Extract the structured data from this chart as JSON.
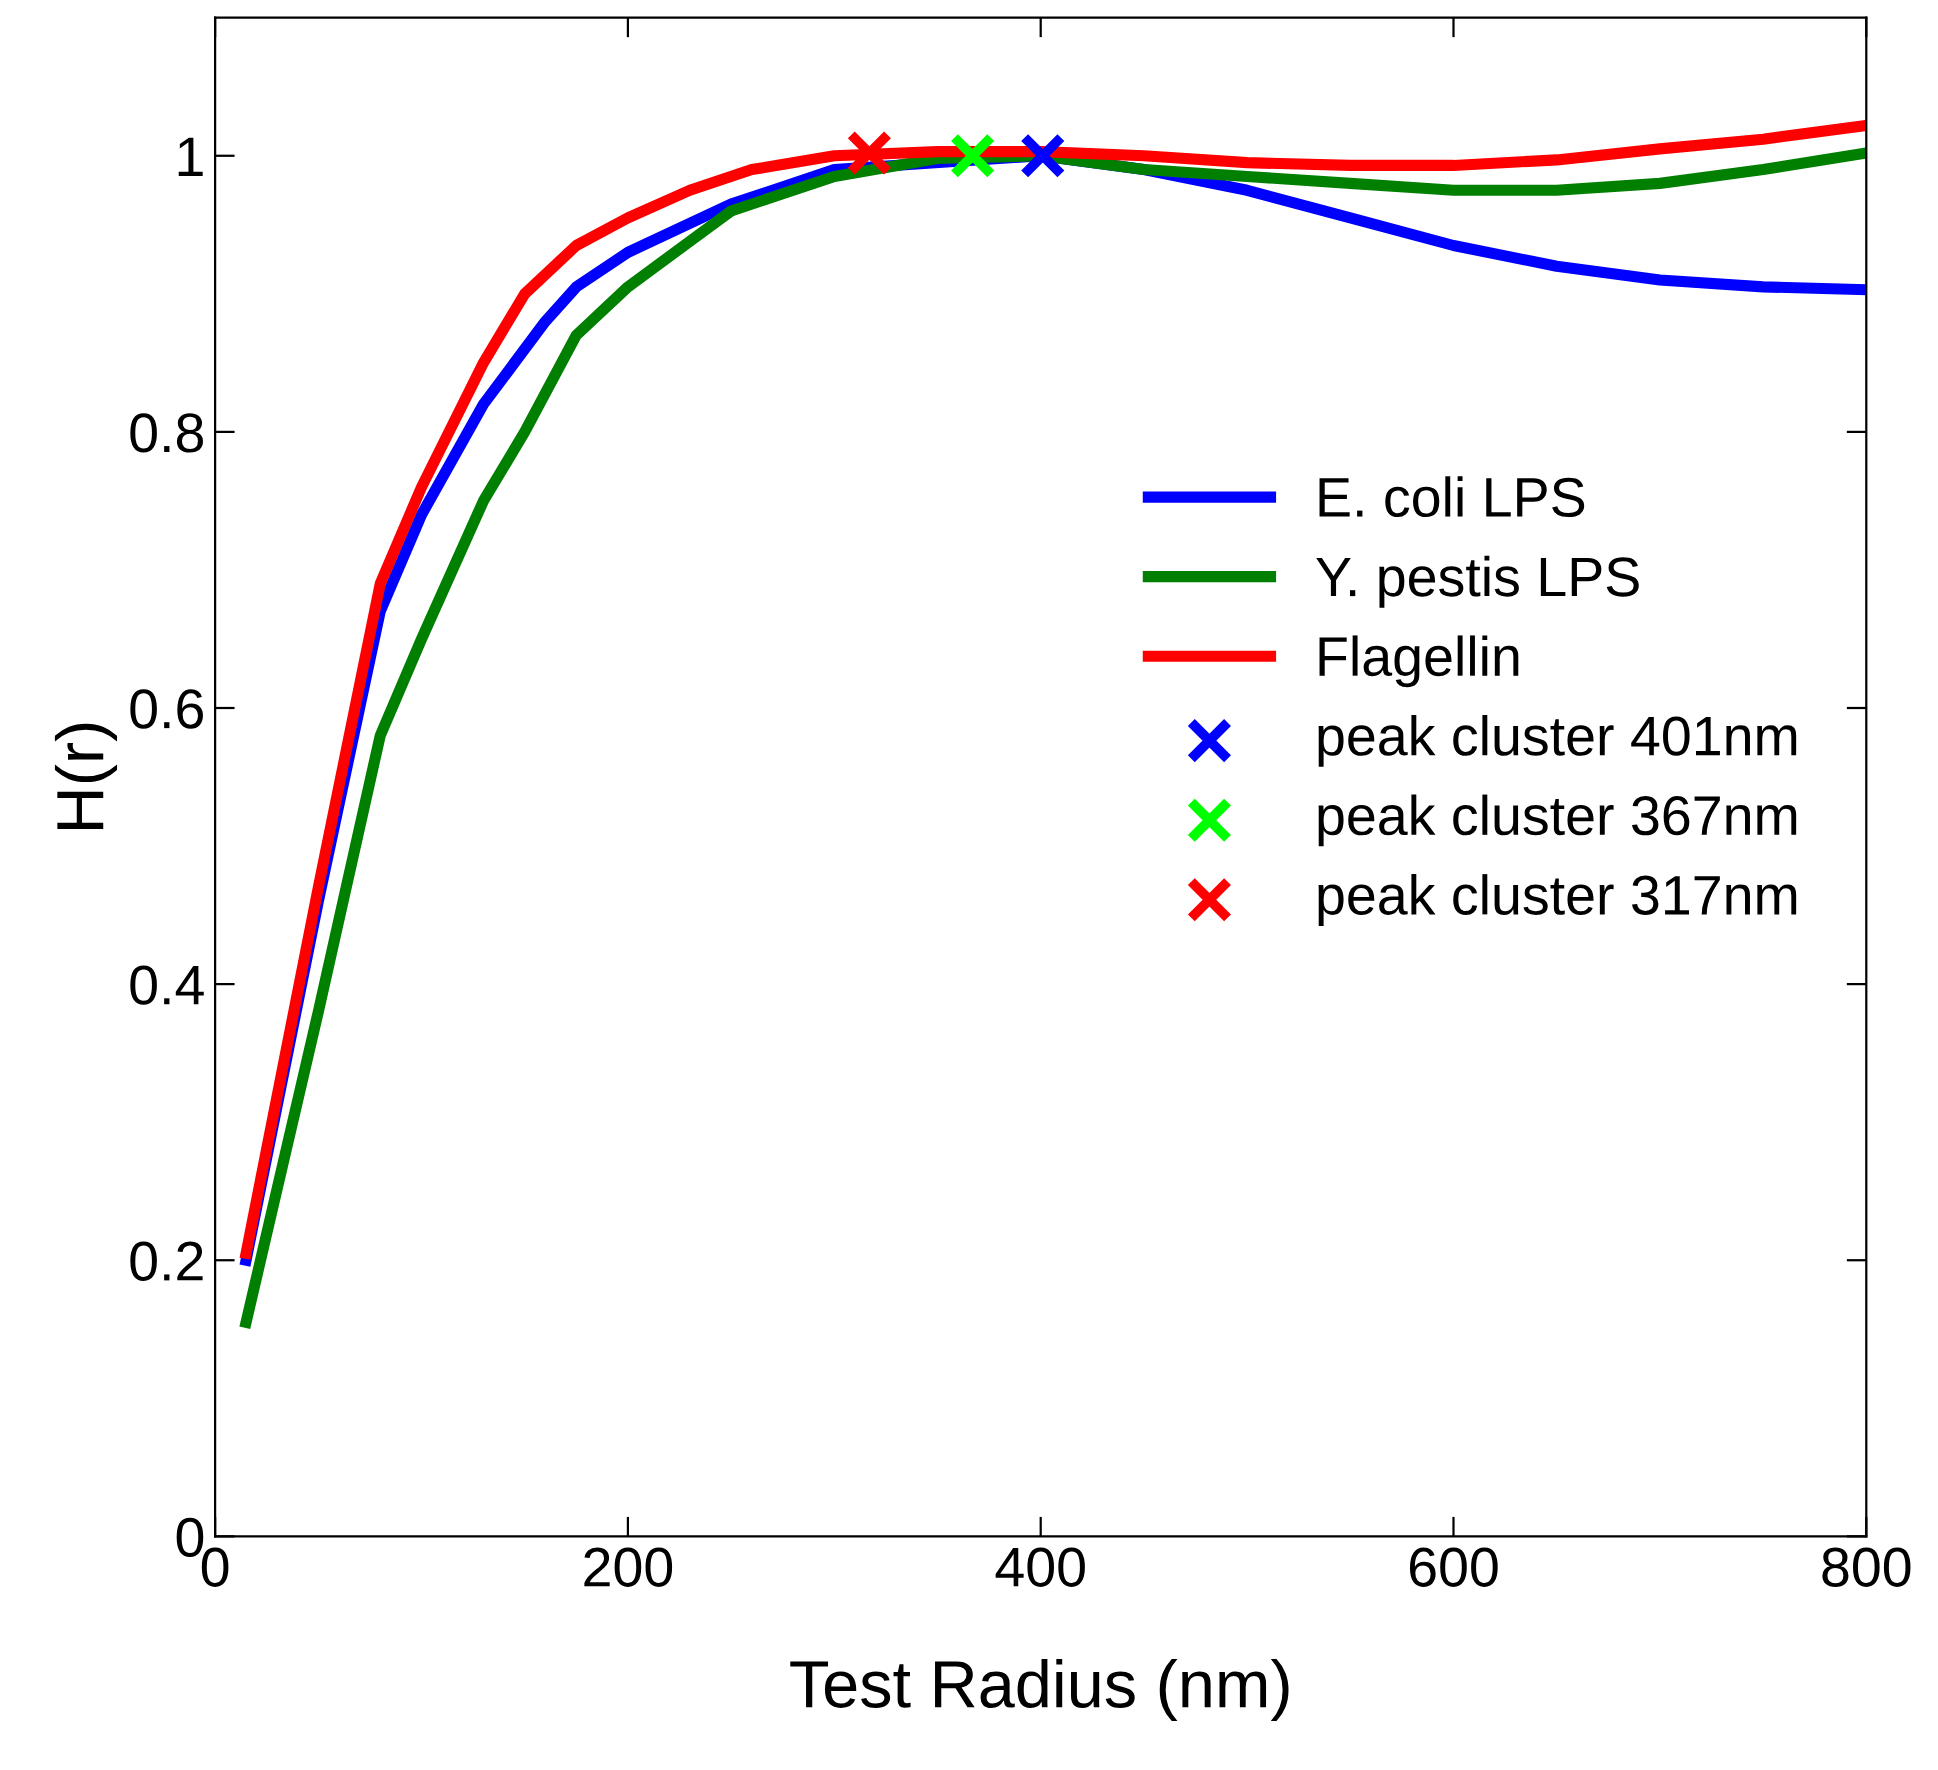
{
  "chart_data": {
    "type": "line",
    "xlabel": "Test Radius (nm)",
    "ylabel": "H(r)",
    "xlim": [
      0,
      800
    ],
    "ylim": [
      0,
      1.1
    ],
    "xticks": [
      0,
      200,
      400,
      600,
      800
    ],
    "yticks": [
      0,
      0.2,
      0.4,
      0.6,
      0.8,
      1
    ],
    "grid": false,
    "legend": "right",
    "marker": "none",
    "line_style": "solid",
    "series": [
      {
        "name": "E. coli LPS",
        "color": "#0000ff",
        "x": [
          15,
          50,
          80,
          100,
          130,
          160,
          175,
          200,
          250,
          300,
          400,
          450,
          500,
          550,
          600,
          650,
          700,
          750,
          800
        ],
        "values": [
          0.2,
          0.46,
          0.67,
          0.74,
          0.82,
          0.88,
          0.905,
          0.93,
          0.965,
          0.99,
          1.0,
          0.99,
          0.975,
          0.955,
          0.935,
          0.92,
          0.91,
          0.905,
          0.903
        ]
      },
      {
        "name": "Y. pestis LPS",
        "color": "#007f00",
        "x": [
          15,
          50,
          80,
          100,
          130,
          150,
          175,
          200,
          250,
          300,
          350,
          400,
          450,
          500,
          550,
          600,
          650,
          700,
          750,
          800
        ],
        "values": [
          0.155,
          0.38,
          0.58,
          0.65,
          0.75,
          0.8,
          0.87,
          0.905,
          0.96,
          0.985,
          0.998,
          1.0,
          0.99,
          0.985,
          0.98,
          0.975,
          0.975,
          0.98,
          0.99,
          1.002
        ]
      },
      {
        "name": "Flagellin",
        "color": "#ff0000",
        "x": [
          15,
          50,
          80,
          100,
          130,
          150,
          175,
          200,
          230,
          260,
          300,
          350,
          400,
          450,
          500,
          550,
          600,
          650,
          700,
          750,
          800
        ],
        "values": [
          0.205,
          0.47,
          0.69,
          0.76,
          0.85,
          0.9,
          0.935,
          0.955,
          0.975,
          0.99,
          1.0,
          1.003,
          1.003,
          1.0,
          0.995,
          0.993,
          0.993,
          0.997,
          1.005,
          1.012,
          1.022
        ]
      },
      {
        "name": "peak cluster 401nm",
        "type": "scatter",
        "marker": "cross",
        "color": "#0000ff",
        "x": [
          401
        ],
        "values": [
          1.0
        ]
      },
      {
        "name": "peak cluster 367nm",
        "type": "scatter",
        "marker": "cross",
        "color": "#00ff00",
        "x": [
          367
        ],
        "values": [
          1.0
        ]
      },
      {
        "name": "peak cluster 317nm",
        "type": "scatter",
        "marker": "cross",
        "color": "#ff0000",
        "x": [
          317
        ],
        "values": [
          1.002
        ]
      }
    ]
  }
}
